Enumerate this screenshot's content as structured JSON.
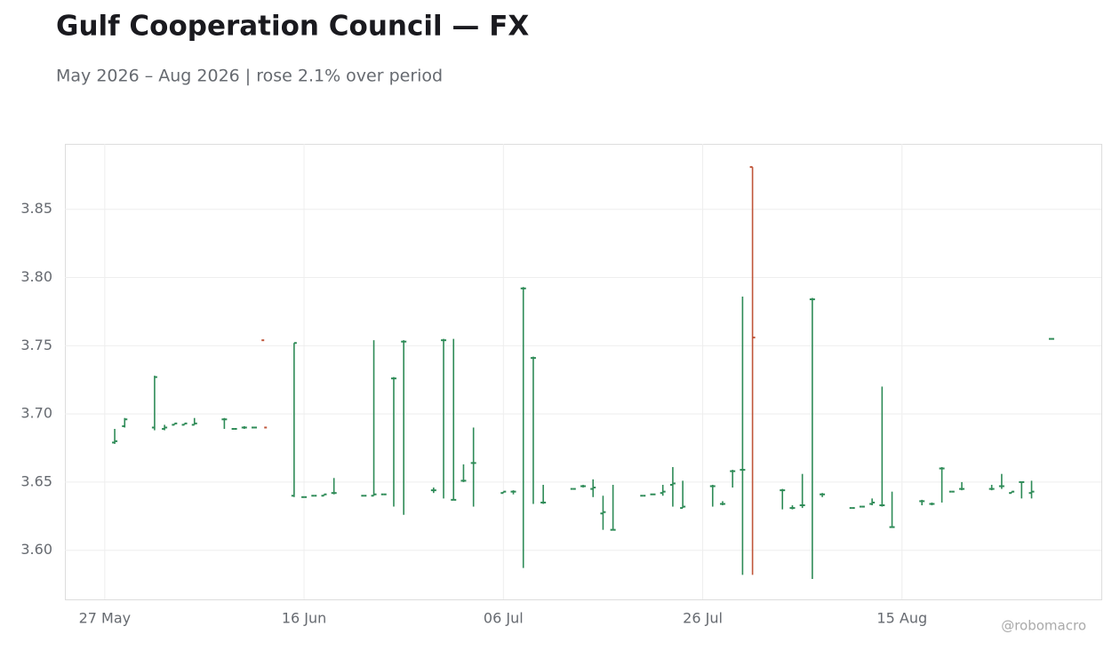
{
  "chart_data": {
    "type": "ohlc",
    "title": "Gulf Cooperation Council — FX",
    "subtitle": "May 2026 – Aug 2026 | rose 2.1% over period",
    "credit": "@robomacro",
    "up_color": "#2e8b57",
    "down_color": "#c0563a",
    "grid": true,
    "x": [
      "2026-05-28",
      "2026-05-29",
      "2026-06-01",
      "2026-06-02",
      "2026-06-03",
      "2026-06-04",
      "2026-06-05",
      "2026-06-08",
      "2026-06-09",
      "2026-06-10",
      "2026-06-11",
      "2026-06-12",
      "2026-06-15",
      "2026-06-16",
      "2026-06-17",
      "2026-06-18",
      "2026-06-19",
      "2026-06-22",
      "2026-06-23",
      "2026-06-24",
      "2026-06-25",
      "2026-06-26",
      "2026-06-29",
      "2026-06-30",
      "2026-07-01",
      "2026-07-02",
      "2026-07-03",
      "2026-07-06",
      "2026-07-07",
      "2026-07-08",
      "2026-07-09",
      "2026-07-10",
      "2026-07-13",
      "2026-07-14",
      "2026-07-15",
      "2026-07-16",
      "2026-07-17",
      "2026-07-20",
      "2026-07-21",
      "2026-07-22",
      "2026-07-23",
      "2026-07-24",
      "2026-07-27",
      "2026-07-28",
      "2026-07-29",
      "2026-07-30",
      "2026-07-31",
      "2026-08-03",
      "2026-08-04",
      "2026-08-05",
      "2026-08-06",
      "2026-08-07",
      "2026-08-10",
      "2026-08-11",
      "2026-08-12",
      "2026-08-13",
      "2026-08-14",
      "2026-08-17",
      "2026-08-18",
      "2026-08-19",
      "2026-08-20",
      "2026-08-21",
      "2026-08-24",
      "2026-08-25",
      "2026-08-26",
      "2026-08-27",
      "2026-08-28",
      "2026-08-30"
    ],
    "open": [
      3.679,
      3.691,
      3.69,
      3.689,
      3.692,
      3.692,
      3.692,
      3.696,
      3.689,
      3.69,
      3.69,
      3.754,
      3.64,
      3.639,
      3.64,
      3.64,
      3.642,
      3.64,
      3.64,
      3.641,
      3.726,
      3.753,
      3.644,
      3.754,
      3.637,
      3.651,
      3.664,
      3.642,
      3.643,
      3.792,
      3.741,
      3.635,
      3.645,
      3.647,
      3.645,
      3.627,
      3.615,
      3.64,
      3.641,
      3.642,
      3.648,
      3.631,
      3.647,
      3.634,
      3.658,
      3.659,
      3.881,
      3.644,
      3.631,
      3.633,
      3.784,
      3.641,
      3.631,
      3.632,
      3.634,
      3.633,
      3.617,
      3.636,
      3.634,
      3.66,
      3.643,
      3.645,
      3.645,
      3.647,
      3.642,
      3.65,
      3.642,
      3.755
    ],
    "high": [
      3.689,
      3.697,
      3.728,
      3.692,
      3.693,
      3.693,
      3.697,
      3.697,
      3.689,
      3.691,
      3.69,
      null,
      3.752,
      3.639,
      3.64,
      3.641,
      3.653,
      3.64,
      3.754,
      3.641,
      3.727,
      3.754,
      3.646,
      3.755,
      3.755,
      3.663,
      3.69,
      3.643,
      3.644,
      3.793,
      3.742,
      3.648,
      3.645,
      3.648,
      3.652,
      3.64,
      3.648,
      3.64,
      3.641,
      3.648,
      3.661,
      3.651,
      3.648,
      3.636,
      3.659,
      3.786,
      3.881,
      3.645,
      3.633,
      3.656,
      3.785,
      3.642,
      3.631,
      3.632,
      3.638,
      3.72,
      3.643,
      3.637,
      3.635,
      3.661,
      3.643,
      3.65,
      3.648,
      3.656,
      3.643,
      3.65,
      3.651,
      3.755
    ],
    "low": [
      3.678,
      3.69,
      3.688,
      3.688,
      3.692,
      3.692,
      3.692,
      3.689,
      3.689,
      3.689,
      3.69,
      null,
      3.639,
      3.639,
      3.64,
      3.64,
      3.641,
      3.64,
      3.64,
      3.641,
      3.632,
      3.626,
      3.642,
      3.638,
      3.637,
      3.65,
      3.632,
      3.642,
      3.641,
      3.587,
      3.634,
      3.634,
      3.645,
      3.646,
      3.639,
      3.615,
      3.615,
      3.64,
      3.641,
      3.64,
      3.632,
      3.631,
      3.632,
      3.633,
      3.646,
      3.582,
      3.582,
      3.63,
      3.63,
      3.631,
      3.579,
      3.639,
      3.631,
      3.632,
      3.633,
      3.632,
      3.617,
      3.633,
      3.633,
      3.635,
      3.643,
      3.644,
      3.644,
      3.645,
      3.642,
      3.638,
      3.638,
      3.755
    ],
    "close": [
      3.68,
      3.696,
      3.727,
      3.69,
      3.693,
      3.693,
      3.693,
      3.696,
      3.689,
      3.69,
      3.69,
      3.69,
      3.752,
      3.639,
      3.64,
      3.641,
      3.642,
      3.64,
      3.641,
      3.641,
      3.726,
      3.753,
      3.644,
      3.754,
      3.637,
      3.651,
      3.664,
      3.643,
      3.643,
      3.792,
      3.741,
      3.635,
      3.645,
      3.647,
      3.646,
      3.628,
      3.615,
      3.64,
      3.641,
      3.643,
      3.649,
      3.632,
      3.647,
      3.634,
      3.658,
      3.659,
      3.756,
      3.644,
      3.631,
      3.633,
      3.784,
      3.641,
      3.631,
      3.632,
      3.635,
      3.633,
      3.617,
      3.636,
      3.634,
      3.66,
      3.643,
      3.645,
      3.645,
      3.647,
      3.643,
      3.65,
      3.643,
      3.755
    ],
    "xlim": [
      "2026-05-23",
      "2026-09-04"
    ],
    "xticks": [
      {
        "value": "2026-05-27",
        "label": "27 May"
      },
      {
        "value": "2026-06-16",
        "label": "16 Jun"
      },
      {
        "value": "2026-07-06",
        "label": "06 Jul"
      },
      {
        "value": "2026-07-26",
        "label": "26 Jul"
      },
      {
        "value": "2026-08-15",
        "label": "15 Aug"
      }
    ],
    "ylim": [
      3.564,
      3.898
    ],
    "yticks": [
      {
        "value": 3.6,
        "label": "3.60"
      },
      {
        "value": 3.65,
        "label": "3.65"
      },
      {
        "value": 3.7,
        "label": "3.70"
      },
      {
        "value": 3.75,
        "label": "3.75"
      },
      {
        "value": 3.8,
        "label": "3.80"
      },
      {
        "value": 3.85,
        "label": "3.85"
      }
    ]
  }
}
